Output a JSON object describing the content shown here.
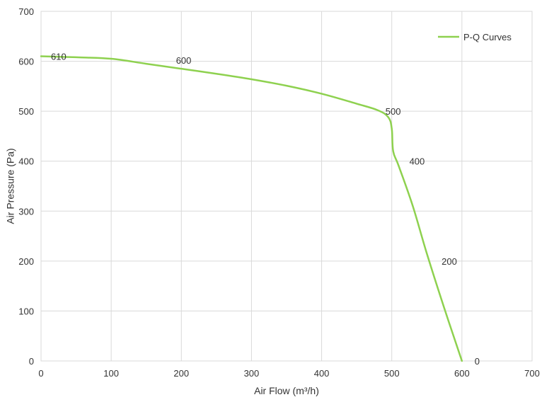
{
  "chart_data": {
    "type": "line",
    "title": "",
    "xlabel": "Air Flow  (m³/h)",
    "ylabel": "Air Pressure  (Pa)",
    "xlim": [
      0,
      700
    ],
    "ylim": [
      0,
      700
    ],
    "x_ticks": [
      0,
      100,
      200,
      300,
      400,
      500,
      600,
      700
    ],
    "y_ticks": [
      0,
      100,
      200,
      300,
      400,
      500,
      600,
      700
    ],
    "grid": true,
    "legend_position": "top-right",
    "series": [
      {
        "name": "P-Q Curves",
        "color": "#8ed14f",
        "points": [
          {
            "x": 0,
            "y": 610
          },
          {
            "x": 50,
            "y": 608
          },
          {
            "x": 100,
            "y": 605
          },
          {
            "x": 150,
            "y": 595
          },
          {
            "x": 200,
            "y": 585
          },
          {
            "x": 250,
            "y": 575
          },
          {
            "x": 300,
            "y": 564
          },
          {
            "x": 350,
            "y": 551
          },
          {
            "x": 400,
            "y": 535
          },
          {
            "x": 450,
            "y": 515
          },
          {
            "x": 480,
            "y": 502
          },
          {
            "x": 495,
            "y": 488
          },
          {
            "x": 500,
            "y": 465
          },
          {
            "x": 502,
            "y": 420
          },
          {
            "x": 510,
            "y": 390
          },
          {
            "x": 530,
            "y": 310
          },
          {
            "x": 550,
            "y": 215
          },
          {
            "x": 575,
            "y": 105
          },
          {
            "x": 600,
            "y": 0
          }
        ]
      }
    ],
    "data_labels": [
      {
        "text": "610",
        "x": 0,
        "y": 610
      },
      {
        "text": "600",
        "x": 150,
        "y": 595
      },
      {
        "text": "500",
        "x": 495,
        "y": 500
      },
      {
        "text": "400",
        "x": 515,
        "y": 400
      },
      {
        "text": "200",
        "x": 565,
        "y": 200
      },
      {
        "text": "0",
        "x": 610,
        "y": 0
      }
    ]
  }
}
